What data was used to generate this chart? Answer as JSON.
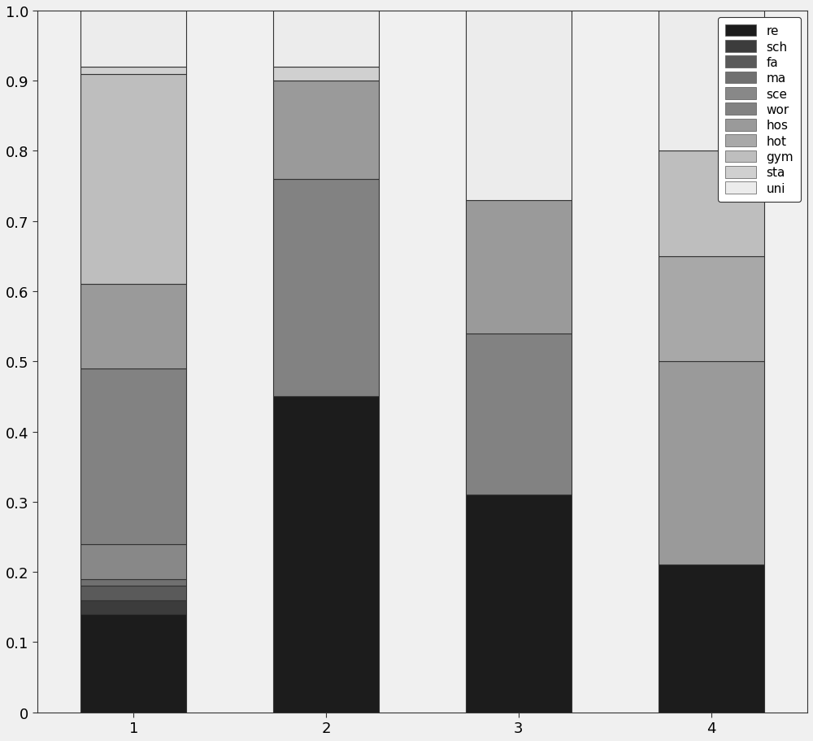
{
  "categories": [
    1,
    2,
    3,
    4
  ],
  "labels": [
    "re",
    "sch",
    "fa",
    "ma",
    "sce",
    "wor",
    "hos",
    "hot",
    "gym",
    "sta",
    "uni"
  ],
  "colors": [
    "#1c1c1c",
    "#3c3c3c",
    "#5a5a5a",
    "#707070",
    "#888888",
    "#828282",
    "#9a9a9a",
    "#a8a8a8",
    "#bebebe",
    "#d0d0d0",
    "#ececec"
  ],
  "bar_data": [
    [
      0.14,
      0.02,
      0.02,
      0.01,
      0.05,
      0.25,
      0.12,
      0.0,
      0.3,
      0.01,
      0.08
    ],
    [
      0.45,
      0.0,
      0.0,
      0.0,
      0.0,
      0.31,
      0.14,
      0.0,
      0.0,
      0.02,
      0.08
    ],
    [
      0.31,
      0.0,
      0.0,
      0.0,
      0.0,
      0.23,
      0.19,
      0.0,
      0.0,
      0.0,
      0.27
    ],
    [
      0.21,
      0.0,
      0.0,
      0.0,
      0.0,
      0.0,
      0.29,
      0.15,
      0.15,
      0.0,
      0.2
    ]
  ],
  "ylim": [
    0,
    1
  ],
  "yticks": [
    0,
    0.1,
    0.2,
    0.3,
    0.4,
    0.5,
    0.6,
    0.7,
    0.8,
    0.9,
    1.0
  ],
  "bar_width": 0.55,
  "figsize": [
    10.0,
    9.12
  ],
  "dpi": 100,
  "bg_color": "#f0f0f0"
}
